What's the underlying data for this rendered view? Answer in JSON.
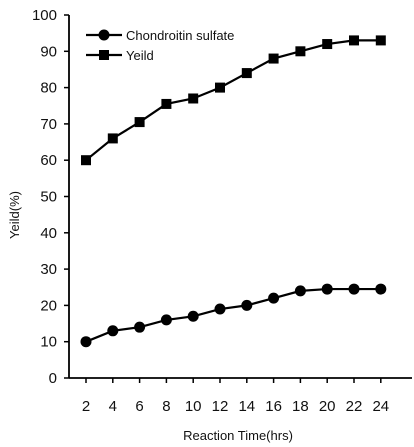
{
  "chart_data": {
    "type": "line",
    "x": [
      2,
      4,
      6,
      8,
      10,
      12,
      14,
      16,
      18,
      20,
      22,
      24
    ],
    "series": [
      {
        "name": "Chondroitin sulfate",
        "marker": "circle",
        "values": [
          10.0,
          13.0,
          14.0,
          16.0,
          17.0,
          19.0,
          20.0,
          22.0,
          24.0,
          24.5,
          24.5,
          24.5
        ]
      },
      {
        "name": "Yeild",
        "marker": "square",
        "values": [
          60.0,
          66.0,
          70.5,
          75.5,
          77.0,
          80.0,
          84.0,
          88.0,
          90.0,
          92.0,
          93.0,
          93.0
        ]
      }
    ],
    "xlabel": "Reaction Time(hrs)",
    "ylabel": "Yeild(%)",
    "xticks": [
      "2",
      "4",
      "6",
      "8",
      "10",
      "12",
      "14",
      "16",
      "18",
      "20",
      "22",
      "24"
    ],
    "yticks": [
      "0",
      "10",
      "20",
      "30",
      "40",
      "50",
      "60",
      "70",
      "80",
      "90",
      "100"
    ],
    "ylim": [
      0,
      100
    ],
    "legend": "top-left",
    "grid": false,
    "colors": {
      "line": "#000000",
      "axis": "#000000",
      "background": "#ffffff"
    }
  }
}
